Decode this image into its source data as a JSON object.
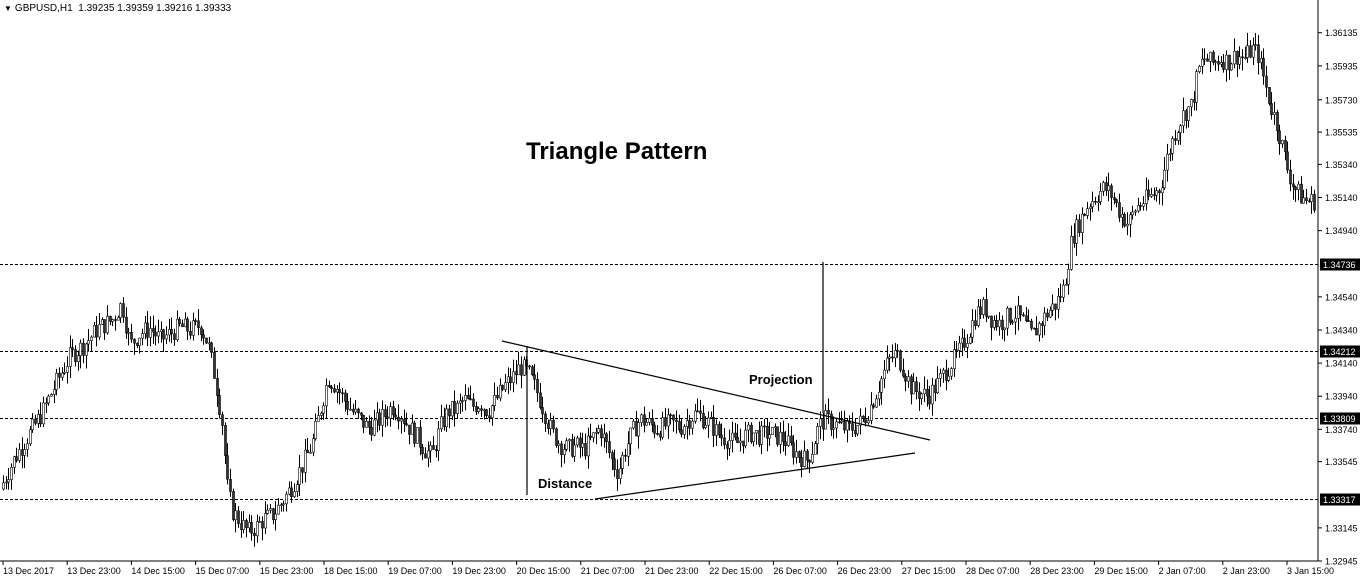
{
  "header": {
    "symbol": "GBPUSD,H1",
    "ohlc": "1.39235 1.39359 1.39216 1.39333"
  },
  "chart_data": {
    "type": "candlestick",
    "title": "Triangle Pattern",
    "xlabel": "",
    "ylabel": "",
    "grid": false,
    "ylim": [
      1.32945,
      1.3623
    ],
    "y_ticks": [
      "1.36135",
      "1.35935",
      "1.35730",
      "1.35535",
      "1.35340",
      "1.35140",
      "1.34940",
      "1.34540",
      "1.34340",
      "1.34140",
      "1.33940",
      "1.33740",
      "1.33545",
      "1.33145",
      "1.32945"
    ],
    "x_ticks": [
      "13 Dec 2017",
      "13 Dec 23:00",
      "14 Dec 15:00",
      "15 Dec 07:00",
      "15 Dec 23:00",
      "18 Dec 15:00",
      "19 Dec 07:00",
      "19 Dec 23:00",
      "20 Dec 15:00",
      "21 Dec 07:00",
      "21 Dec 23:00",
      "22 Dec 15:00",
      "26 Dec 07:00",
      "26 Dec 23:00",
      "27 Dec 15:00",
      "28 Dec 07:00",
      "28 Dec 23:00",
      "29 Dec 15:00",
      "2 Jan 07:00",
      "2 Jan 23:00",
      "3 Jan 15:00"
    ],
    "levels": [
      "1.34736",
      "1.34212",
      "1.33809",
      "1.33317"
    ],
    "close_path": [
      [
        0,
        1.3338
      ],
      [
        14,
        1.3356
      ],
      [
        28,
        1.337
      ],
      [
        42,
        1.3384
      ],
      [
        56,
        1.3402
      ],
      [
        70,
        1.3418
      ],
      [
        84,
        1.3425
      ],
      [
        98,
        1.3435
      ],
      [
        112,
        1.344
      ],
      [
        122,
        1.345
      ],
      [
        130,
        1.3425
      ],
      [
        140,
        1.3432
      ],
      [
        150,
        1.3435
      ],
      [
        160,
        1.3428
      ],
      [
        170,
        1.3432
      ],
      [
        180,
        1.3436
      ],
      [
        190,
        1.3434
      ],
      [
        200,
        1.3437
      ],
      [
        208,
        1.3425
      ],
      [
        215,
        1.3405
      ],
      [
        222,
        1.3378
      ],
      [
        227,
        1.334
      ],
      [
        232,
        1.3325
      ],
      [
        240,
        1.3318
      ],
      [
        248,
        1.3312
      ],
      [
        256,
        1.3315
      ],
      [
        264,
        1.332
      ],
      [
        272,
        1.3322
      ],
      [
        282,
        1.333
      ],
      [
        292,
        1.334
      ],
      [
        302,
        1.3352
      ],
      [
        312,
        1.3365
      ],
      [
        320,
        1.3385
      ],
      [
        328,
        1.3405
      ],
      [
        336,
        1.34
      ],
      [
        344,
        1.3392
      ],
      [
        352,
        1.3385
      ],
      [
        360,
        1.338
      ],
      [
        368,
        1.3375
      ],
      [
        376,
        1.3378
      ],
      [
        384,
        1.3382
      ],
      [
        392,
        1.3388
      ],
      [
        400,
        1.3384
      ],
      [
        408,
        1.3376
      ],
      [
        416,
        1.337
      ],
      [
        424,
        1.3362
      ],
      [
        432,
        1.3358
      ],
      [
        440,
        1.3375
      ],
      [
        448,
        1.3385
      ],
      [
        456,
        1.3386
      ],
      [
        464,
        1.3392
      ],
      [
        472,
        1.3388
      ],
      [
        480,
        1.339
      ],
      [
        488,
        1.3385
      ],
      [
        496,
        1.3392
      ],
      [
        504,
        1.34
      ],
      [
        512,
        1.3405
      ],
      [
        520,
        1.3412
      ],
      [
        528,
        1.3408
      ],
      [
        536,
        1.3398
      ],
      [
        544,
        1.3385
      ],
      [
        552,
        1.3372
      ],
      [
        560,
        1.3365
      ],
      [
        568,
        1.3362
      ],
      [
        576,
        1.3364
      ],
      [
        584,
        1.3362
      ],
      [
        592,
        1.3368
      ],
      [
        600,
        1.3375
      ],
      [
        606,
        1.3365
      ],
      [
        612,
        1.3355
      ],
      [
        618,
        1.3348
      ],
      [
        624,
        1.336
      ],
      [
        632,
        1.3372
      ],
      [
        640,
        1.338
      ],
      [
        648,
        1.3378
      ],
      [
        656,
        1.3374
      ],
      [
        664,
        1.3376
      ],
      [
        672,
        1.3378
      ],
      [
        680,
        1.3375
      ],
      [
        688,
        1.338
      ],
      [
        696,
        1.3384
      ],
      [
        704,
        1.338
      ],
      [
        712,
        1.3376
      ],
      [
        720,
        1.337
      ],
      [
        728,
        1.3368
      ],
      [
        736,
        1.3365
      ],
      [
        744,
        1.337
      ],
      [
        752,
        1.3372
      ],
      [
        760,
        1.337
      ],
      [
        768,
        1.3372
      ],
      [
        776,
        1.337
      ],
      [
        784,
        1.3368
      ],
      [
        792,
        1.3362
      ],
      [
        800,
        1.3358
      ],
      [
        806,
        1.3355
      ],
      [
        812,
        1.3362
      ],
      [
        818,
        1.3375
      ],
      [
        824,
        1.338
      ],
      [
        832,
        1.3378
      ],
      [
        840,
        1.3376
      ],
      [
        848,
        1.3374
      ],
      [
        856,
        1.3376
      ],
      [
        864,
        1.338
      ],
      [
        872,
        1.339
      ],
      [
        880,
        1.3402
      ],
      [
        888,
        1.3415
      ],
      [
        896,
        1.342
      ],
      [
        904,
        1.341
      ],
      [
        912,
        1.3398
      ],
      [
        920,
        1.3396
      ],
      [
        928,
        1.3394
      ],
      [
        936,
        1.34
      ],
      [
        944,
        1.3408
      ],
      [
        952,
        1.3415
      ],
      [
        960,
        1.3422
      ],
      [
        968,
        1.3432
      ],
      [
        976,
        1.3444
      ],
      [
        984,
        1.3448
      ],
      [
        992,
        1.344
      ],
      [
        1000,
        1.3438
      ],
      [
        1008,
        1.3442
      ],
      [
        1016,
        1.3444
      ],
      [
        1024,
        1.3438
      ],
      [
        1032,
        1.343
      ],
      [
        1040,
        1.3438
      ],
      [
        1048,
        1.3445
      ],
      [
        1056,
        1.345
      ],
      [
        1064,
        1.346
      ],
      [
        1072,
        1.349
      ],
      [
        1080,
        1.35
      ],
      [
        1088,
        1.351
      ],
      [
        1096,
        1.3515
      ],
      [
        1104,
        1.352
      ],
      [
        1112,
        1.3515
      ],
      [
        1120,
        1.3505
      ],
      [
        1128,
        1.3498
      ],
      [
        1136,
        1.3508
      ],
      [
        1144,
        1.3512
      ],
      [
        1152,
        1.3515
      ],
      [
        1160,
        1.352
      ],
      [
        1168,
        1.354
      ],
      [
        1176,
        1.3555
      ],
      [
        1184,
        1.3565
      ],
      [
        1192,
        1.357
      ],
      [
        1198,
        1.359
      ],
      [
        1204,
        1.3598
      ],
      [
        1212,
        1.3595
      ],
      [
        1220,
        1.3598
      ],
      [
        1228,
        1.3596
      ],
      [
        1236,
        1.36
      ],
      [
        1244,
        1.3598
      ],
      [
        1252,
        1.3604
      ],
      [
        1258,
        1.36
      ],
      [
        1264,
        1.3585
      ],
      [
        1270,
        1.357
      ],
      [
        1276,
        1.356
      ],
      [
        1282,
        1.3545
      ],
      [
        1288,
        1.353
      ],
      [
        1294,
        1.352
      ],
      [
        1300,
        1.3515
      ],
      [
        1306,
        1.3512
      ],
      [
        1314,
        1.3512
      ]
    ],
    "annotations": {
      "projection": "Projection",
      "distance": "Distance"
    },
    "trendlines": [
      {
        "name": "upper",
        "from": [
          "20 Dec 07:00",
          1.3425
        ],
        "to": [
          "27 Dec 07:00",
          1.3372
        ]
      },
      {
        "name": "lower",
        "from": [
          "21 Dec 07:00",
          1.333
        ],
        "to": [
          "27 Dec 07:00",
          1.3355
        ]
      }
    ],
    "colors": {
      "background": "#ffffff",
      "candle_up": "#ffffff",
      "candle_down": "#333333",
      "wick": "#000000",
      "lines": "#000000"
    }
  }
}
